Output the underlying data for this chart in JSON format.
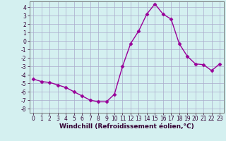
{
  "x": [
    0,
    1,
    2,
    3,
    4,
    5,
    6,
    7,
    8,
    9,
    10,
    11,
    12,
    13,
    14,
    15,
    16,
    17,
    18,
    19,
    20,
    21,
    22,
    23
  ],
  "y": [
    -4.5,
    -4.8,
    -4.9,
    -5.2,
    -5.5,
    -6.0,
    -6.5,
    -7.0,
    -7.2,
    -7.2,
    -6.3,
    -3.0,
    -0.3,
    1.2,
    3.2,
    4.4,
    3.2,
    2.6,
    -0.3,
    -1.8,
    -2.7,
    -2.8,
    -3.5,
    -2.7
  ],
  "line_color": "#990099",
  "marker": "D",
  "markersize": 2.5,
  "linewidth": 1.0,
  "xlabel": "Windchill (Refroidissement éolien,°C)",
  "xlabel_fontsize": 6.5,
  "ylim": [
    -8.5,
    4.7
  ],
  "xlim": [
    -0.5,
    23.5
  ],
  "yticks": [
    -8,
    -7,
    -6,
    -5,
    -4,
    -3,
    -2,
    -1,
    0,
    1,
    2,
    3,
    4
  ],
  "xticks": [
    0,
    1,
    2,
    3,
    4,
    5,
    6,
    7,
    8,
    9,
    10,
    11,
    12,
    13,
    14,
    15,
    16,
    17,
    18,
    19,
    20,
    21,
    22,
    23
  ],
  "bg_color": "#d4f0f0",
  "grid_color": "#aaaacc",
  "tick_fontsize": 5.5,
  "spine_color": "#666666"
}
